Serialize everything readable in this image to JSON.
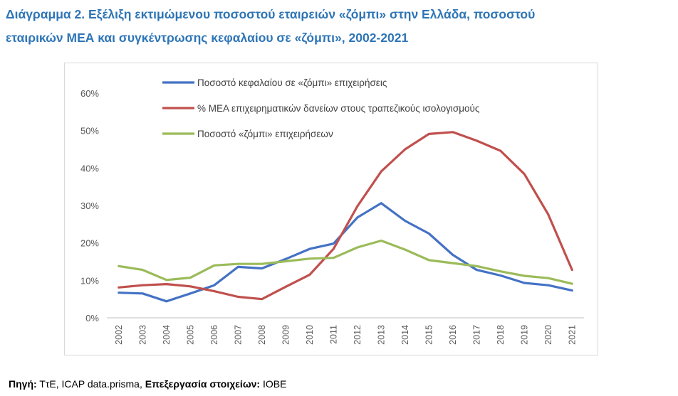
{
  "title": {
    "line1": "Διάγραμμα 2. Εξέλιξη εκτιμώμενου ποσοστού εταιρειών «ζόμπι» στην Ελλάδα, ποσοστού",
    "line2": "εταιρικών ΜΕΑ και συγκέντρωσης κεφαλαίου σε «ζόμπι», 2002-2021"
  },
  "source": {
    "label1": "Πηγή:",
    "text1": " ΤτΕ, ICAP data.prisma, ",
    "label2": "Επεξεργασία στοιχείων:",
    "text2": " ΙΟΒΕ"
  },
  "chart_data": {
    "type": "line",
    "title": "",
    "xlabel": "",
    "ylabel": "",
    "ylim": [
      0,
      60
    ],
    "yticks": [
      "0%",
      "10%",
      "20%",
      "30%",
      "40%",
      "50%",
      "60%"
    ],
    "grid": false,
    "legend_position": "top",
    "categories": [
      "2002",
      "2003",
      "2004",
      "2005",
      "2006",
      "2007",
      "2008",
      "2009",
      "2010",
      "2011",
      "2012",
      "2013",
      "2014",
      "2015",
      "2016",
      "2017",
      "2018",
      "2019",
      "2020",
      "2021"
    ],
    "series": [
      {
        "name": "Ποσοστό κεφαλαίου σε «ζόμπι» επιχειρήσεις",
        "color": "#4472C4",
        "values": [
          6.7,
          6.5,
          4.4,
          6.5,
          8.7,
          13.6,
          13.2,
          15.7,
          18.4,
          19.8,
          26.8,
          30.6,
          25.9,
          22.5,
          16.8,
          12.8,
          11.3,
          9.3,
          8.7,
          7.3
        ]
      },
      {
        "name": "% ΜΕΑ επιχειρηματικών δανείων στους τραπεζικούς ισολογισμούς",
        "color": "#C0504D",
        "values": [
          8.1,
          8.7,
          9.0,
          8.4,
          7.1,
          5.6,
          5.0,
          8.3,
          11.5,
          18.4,
          29.8,
          39.1,
          45.0,
          49.1,
          49.6,
          47.3,
          44.6,
          38.4,
          27.6,
          12.8
        ]
      },
      {
        "name": "Ποσοστό «ζόμπι» επιχειρήσεων",
        "color": "#9BBB59",
        "values": [
          13.8,
          12.8,
          10.1,
          10.7,
          14.0,
          14.4,
          14.4,
          15.1,
          15.8,
          16.0,
          18.8,
          20.6,
          18.2,
          15.4,
          14.6,
          13.8,
          12.4,
          11.2,
          10.6,
          9.1
        ]
      }
    ]
  }
}
